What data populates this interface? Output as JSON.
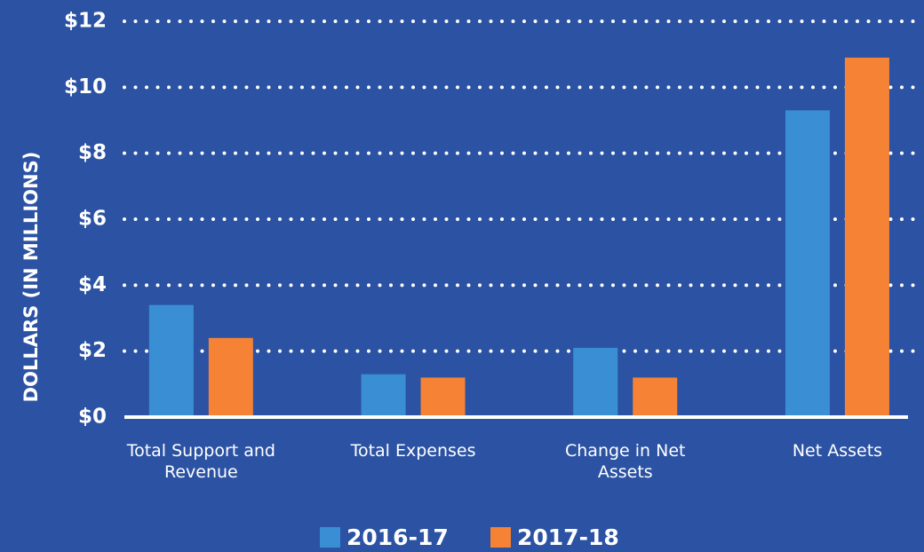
{
  "chart_data": {
    "type": "bar",
    "y_label": "DOLLARS (IN MILLIONS)",
    "categories": [
      "Total Support and Revenue",
      "Total Expenses",
      "Change in Net Assets",
      "Net Assets"
    ],
    "series": [
      {
        "name": "2016-17",
        "color": "#3a8fd4",
        "values": [
          3.4,
          1.3,
          2.1,
          9.3
        ]
      },
      {
        "name": "2017-18",
        "color": "#f58235",
        "values": [
          2.4,
          1.2,
          1.2,
          10.9
        ]
      }
    ],
    "ylim": [
      0,
      12
    ],
    "yticks": [
      {
        "value": 0,
        "label": "$0"
      },
      {
        "value": 2,
        "label": "$2"
      },
      {
        "value": 4,
        "label": "$4"
      },
      {
        "value": 6,
        "label": "$6"
      },
      {
        "value": 8,
        "label": "$8"
      },
      {
        "value": 10,
        "label": "$10"
      },
      {
        "value": 12,
        "label": "$12"
      }
    ],
    "grid": true
  }
}
